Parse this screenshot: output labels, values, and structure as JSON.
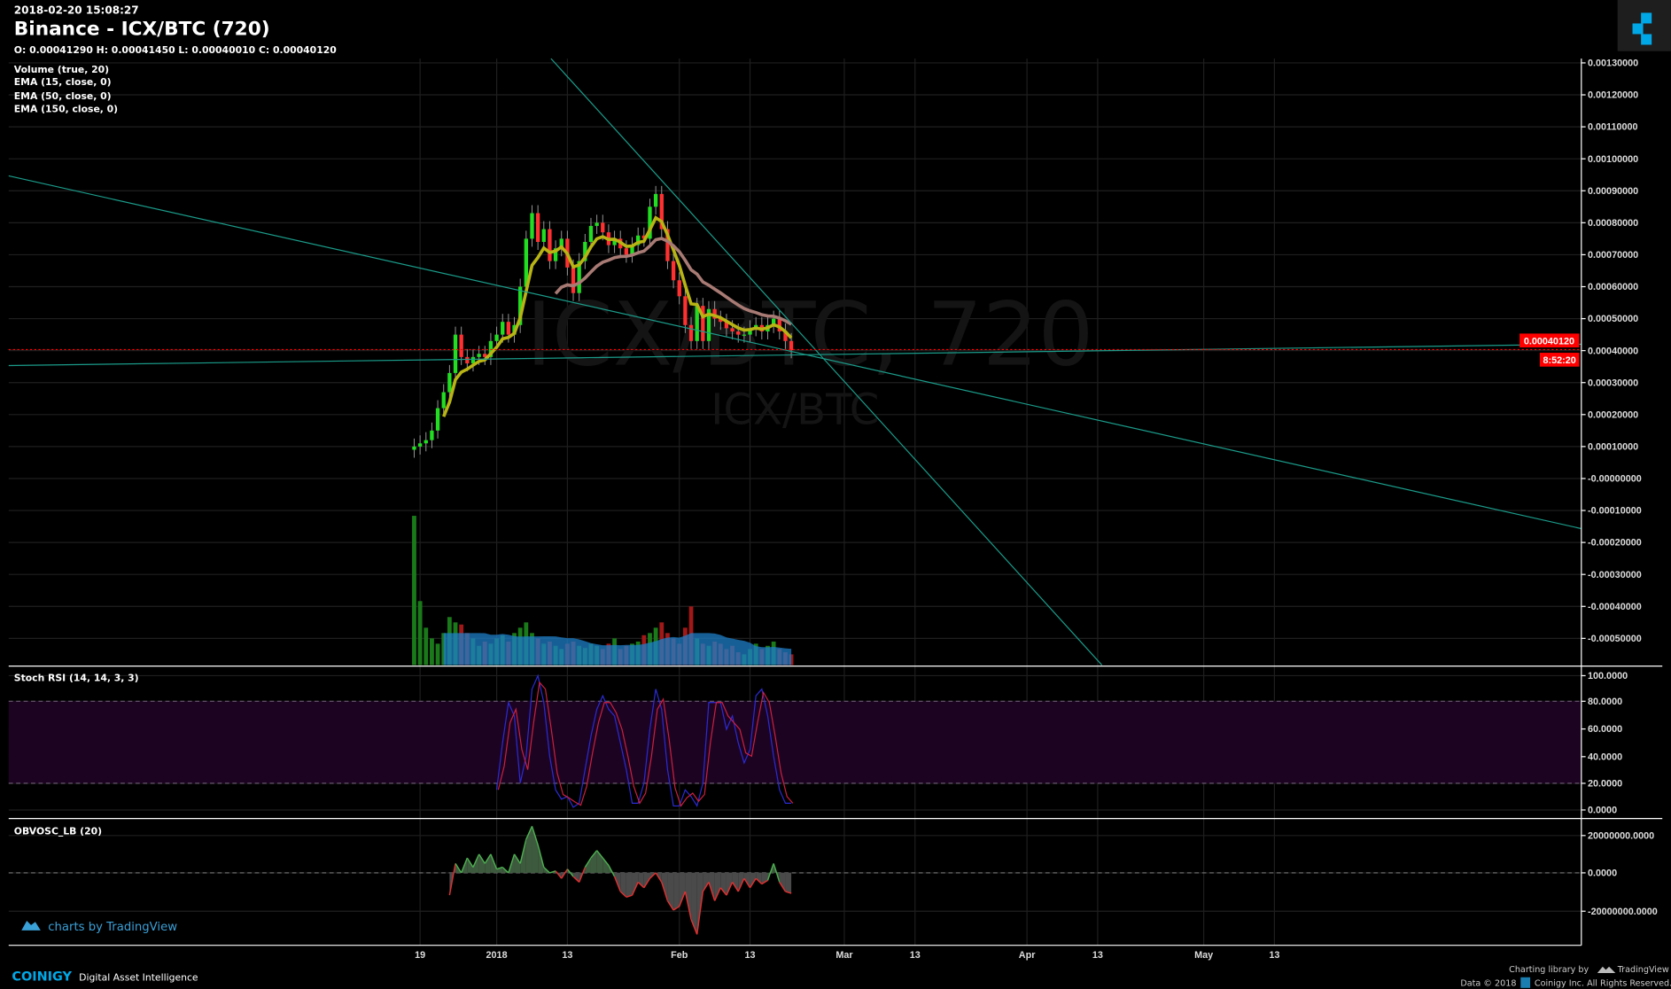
{
  "header": {
    "timestamp": "2018-02-20 15:08:27",
    "title": "Binance - ICX/BTC (720)",
    "ohlc": "O: 0.00041290 H: 0.00041450 L: 0.00040010 C: 0.00040120"
  },
  "indicators": [
    "Volume (true, 20)",
    "EMA (15, close, 0)",
    "EMA (50, close, 0)",
    "EMA (150, close, 0)"
  ],
  "watermark": {
    "main": "ICX/BTC, 720",
    "sub": "ICX/BTC"
  },
  "price_axis": {
    "ticks": [
      "0.00130000",
      "0.00120000",
      "0.00110000",
      "0.00100000",
      "0.00090000",
      "0.00080000",
      "0.00070000",
      "0.00060000",
      "0.00050000",
      "0.00040000",
      "0.00030000",
      "0.00020000",
      "0.00010000",
      "-0.00000000",
      "-0.00010000",
      "-0.00020000",
      "-0.00030000",
      "-0.00040000",
      "-0.00050000"
    ],
    "last_price": "0.00040120",
    "countdown": "8:52:20"
  },
  "stoch_rsi": {
    "label": "Stoch RSI (14, 14, 3, 3)",
    "ticks": [
      "100.0000",
      "80.0000",
      "60.0000",
      "40.0000",
      "20.0000",
      "0.0000"
    ]
  },
  "obvosc": {
    "label": "OBVOSC_LB (20)",
    "ticks": [
      "20000000.0000",
      "0.0000",
      "-20000000.0000"
    ]
  },
  "time_axis": {
    "ticks": [
      "19",
      "2018",
      "13",
      "Feb",
      "13",
      "Mar",
      "13",
      "Apr",
      "13",
      "May",
      "13"
    ]
  },
  "footer": {
    "tv_link": "charts by TradingView",
    "brand": "COINIGY",
    "tagline": "Digital Asset Intelligence",
    "charting_by": "Charting library by",
    "tv_name": "TradingView",
    "copyright": "Data © 2018",
    "copyright2": "Coinigy Inc. All Rights Reserved."
  },
  "colors": {
    "up": "#22dd22",
    "down": "#ff3030",
    "ema15": "#b8b414",
    "ema50": "#a87a74",
    "trendline": "#1a9c8a",
    "last_price": "#ff0000",
    "stoch_k": "#2b2bd6",
    "stoch_d": "#cc2040",
    "stoch_band": "#1c0322",
    "volume_ma": "#1e7fc8",
    "accent": "#00a8e8"
  },
  "chart_data": {
    "type": "candlestick",
    "interval": "720",
    "price_start_date": "2017-12-18",
    "closes_e4": [
      1.0,
      1.1,
      1.2,
      1.5,
      2.2,
      2.7,
      3.3,
      4.5,
      3.8,
      3.6,
      3.8,
      3.9,
      3.8,
      4.3,
      4.5,
      4.9,
      4.5,
      4.8,
      6.0,
      7.5,
      8.3,
      7.4,
      7.8,
      6.8,
      7.2,
      7.5,
      6.6,
      5.8,
      6.8,
      7.4,
      7.9,
      8.0,
      7.7,
      7.3,
      7.5,
      7.2,
      7.0,
      7.3,
      7.6,
      7.5,
      8.5,
      8.9,
      7.8,
      6.8,
      6.2,
      5.7,
      4.8,
      4.3,
      5.4,
      4.3,
      5.3,
      5.0,
      4.9,
      4.7,
      4.6,
      4.5,
      4.5,
      4.7,
      4.8,
      4.6,
      4.8,
      5.0,
      4.6,
      4.3,
      4.012
    ],
    "volume_rel": [
      140,
      60,
      35,
      25,
      20,
      30,
      45,
      40,
      38,
      30,
      25,
      18,
      22,
      20,
      25,
      28,
      22,
      30,
      35,
      40,
      30,
      25,
      20,
      22,
      18,
      15,
      20,
      22,
      18,
      16,
      20,
      18,
      15,
      20,
      25,
      15,
      18,
      20,
      22,
      28,
      30,
      35,
      40,
      30,
      25,
      20,
      35,
      55,
      25,
      20,
      18,
      22,
      20,
      15,
      18,
      12,
      10,
      15,
      20,
      15,
      18,
      22,
      15,
      12,
      10
    ],
    "stoch_start_date": "2018-01-01",
    "stoch_k": [
      15,
      50,
      80,
      70,
      20,
      40,
      90,
      100,
      80,
      40,
      15,
      8,
      10,
      2,
      5,
      30,
      55,
      75,
      85,
      75,
      70,
      50,
      30,
      5,
      5,
      20,
      60,
      90,
      75,
      30,
      3,
      3,
      15,
      10,
      3,
      20,
      80,
      80,
      80,
      60,
      70,
      50,
      35,
      45,
      85,
      90,
      70,
      40,
      15,
      5,
      5
    ],
    "obv_start_date": "2017-12-24",
    "obv_millions": [
      -12,
      5,
      0,
      8,
      3,
      10,
      5,
      10,
      2,
      3,
      0,
      10,
      5,
      18,
      25,
      15,
      3,
      0,
      1,
      -3,
      2,
      -2,
      -5,
      3,
      8,
      12,
      8,
      4,
      -2,
      -10,
      -13,
      -12,
      -5,
      -8,
      -3,
      0,
      -5,
      -15,
      -20,
      -18,
      -10,
      -25,
      -33,
      -10,
      -5,
      -15,
      -8,
      -12,
      -5,
      -10,
      -3,
      -8,
      -3,
      -6,
      -4,
      5,
      -5,
      -10,
      -11
    ],
    "ylim_price": [
      -0.00055,
      0.0013
    ],
    "ylim_stoch": [
      0,
      100
    ],
    "ylim_obv": [
      -20000000,
      20000000
    ]
  }
}
